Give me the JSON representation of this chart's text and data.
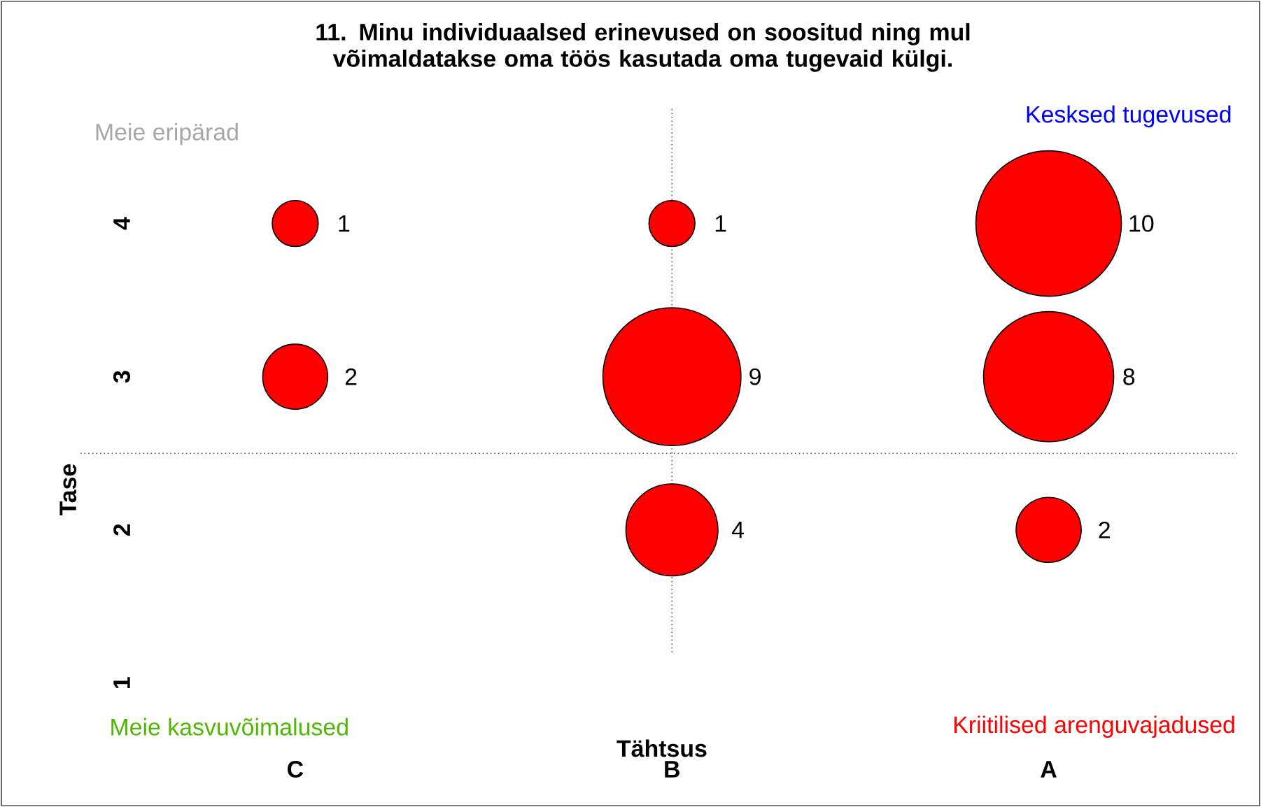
{
  "chart_data": {
    "type": "bubble",
    "title": "11. Minu individuaalsed erinevused on soositud ning mul võimaldatakse oma töös kasutada oma tugevaid külgi.",
    "xlabel": "Tähtsus",
    "ylabel": "Tase",
    "categories": [
      "C",
      "B",
      "A"
    ],
    "series": [
      {
        "color": "#ff0000",
        "values": [
          4,
          4,
          4
        ],
        "sizes": [
          1,
          1,
          10
        ],
        "value_labels": [
          "1",
          "1",
          "10"
        ]
      },
      {
        "color": "#ff0000",
        "values": [
          3,
          3,
          3
        ],
        "sizes": [
          2,
          9,
          8
        ],
        "value_labels": [
          "2",
          "9",
          "8"
        ]
      },
      {
        "color": "#ff0000",
        "values": [
          null,
          2,
          2
        ],
        "sizes": [
          null,
          4,
          2
        ],
        "value_labels": [
          null,
          "4",
          "2"
        ]
      }
    ],
    "ylim": [
      0.2,
      5.45
    ],
    "yticks": [
      1,
      2,
      3,
      4
    ],
    "ref_lines": [
      {
        "axis": "x",
        "value": "B",
        "line_style": "dotted"
      },
      {
        "axis": "y",
        "value": 2.5,
        "line_style": "dotted"
      }
    ],
    "annotations": [
      "Meie eripärad",
      "Kesksed tugevused",
      "Meie kasvuvõimalused",
      "Kriitilised arenguvajadused"
    ]
  }
}
